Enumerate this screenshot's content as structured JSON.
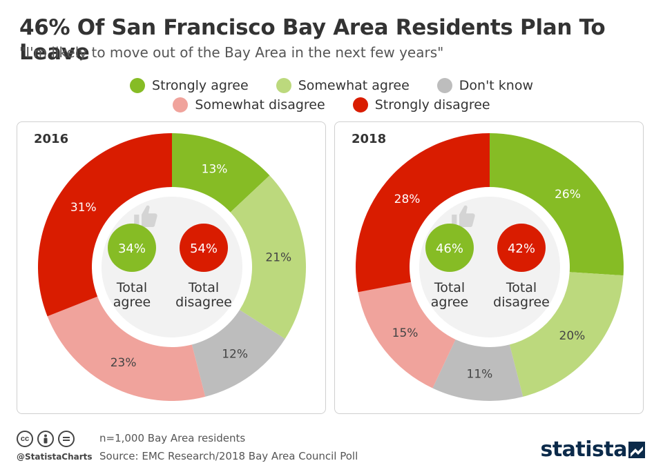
{
  "header": {
    "title": "46% Of San Francisco Bay Area Residents Plan To Leave",
    "subtitle": "\"I'm likely to move out of the Bay Area in the next few years\""
  },
  "legend": {
    "rows": [
      [
        {
          "label": "Strongly agree",
          "color": "#86bc25"
        },
        {
          "label": "Somewhat agree",
          "color": "#bcd97d"
        },
        {
          "label": "Don't know",
          "color": "#bdbdbd"
        }
      ],
      [
        {
          "label": "Somewhat disagree",
          "color": "#f0a39c"
        },
        {
          "label": "Strongly disagree",
          "color": "#d91c00"
        }
      ]
    ]
  },
  "chart_data": [
    {
      "type": "pie",
      "title": "2016",
      "categories": [
        "Strongly agree",
        "Somewhat agree",
        "Don't know",
        "Somewhat disagree",
        "Strongly disagree"
      ],
      "values": [
        13,
        21,
        12,
        23,
        31
      ],
      "value_labels": [
        "13%",
        "21%",
        "12%",
        "23%",
        "31%"
      ],
      "colors": [
        "#86bc25",
        "#bcd97d",
        "#bdbdbd",
        "#f0a39c",
        "#d91c00"
      ],
      "total_agree": {
        "value": "34%",
        "label_line1": "Total",
        "label_line2": "agree"
      },
      "total_disagree": {
        "value": "54%",
        "label_line1": "Total",
        "label_line2": "disagree"
      }
    },
    {
      "type": "pie",
      "title": "2018",
      "categories": [
        "Strongly agree",
        "Somewhat agree",
        "Don't know",
        "Somewhat disagree",
        "Strongly disagree"
      ],
      "values": [
        26,
        20,
        11,
        15,
        28
      ],
      "value_labels": [
        "26%",
        "20%",
        "11%",
        "15%",
        "28%"
      ],
      "colors": [
        "#86bc25",
        "#bcd97d",
        "#bdbdbd",
        "#f0a39c",
        "#d91c00"
      ],
      "total_agree": {
        "value": "46%",
        "label_line1": "Total",
        "label_line2": "agree"
      },
      "total_disagree": {
        "value": "42%",
        "label_line1": "Total",
        "label_line2": "disagree"
      }
    }
  ],
  "icons": {
    "agree": "thumbs-up-icon",
    "disagree": "thumbs-down-icon"
  },
  "footer": {
    "note": "n=1,000 Bay Area residents",
    "source": "Source: EMC Research/2018 Bay Area Council Poll",
    "handle": "@StatistaCharts",
    "brand": "statista"
  },
  "colors": {
    "label_text": "#444444",
    "panel_border": "#cfcfcf",
    "inner_circle": "#f2f2f2",
    "thumb": "#d4d4d4"
  }
}
